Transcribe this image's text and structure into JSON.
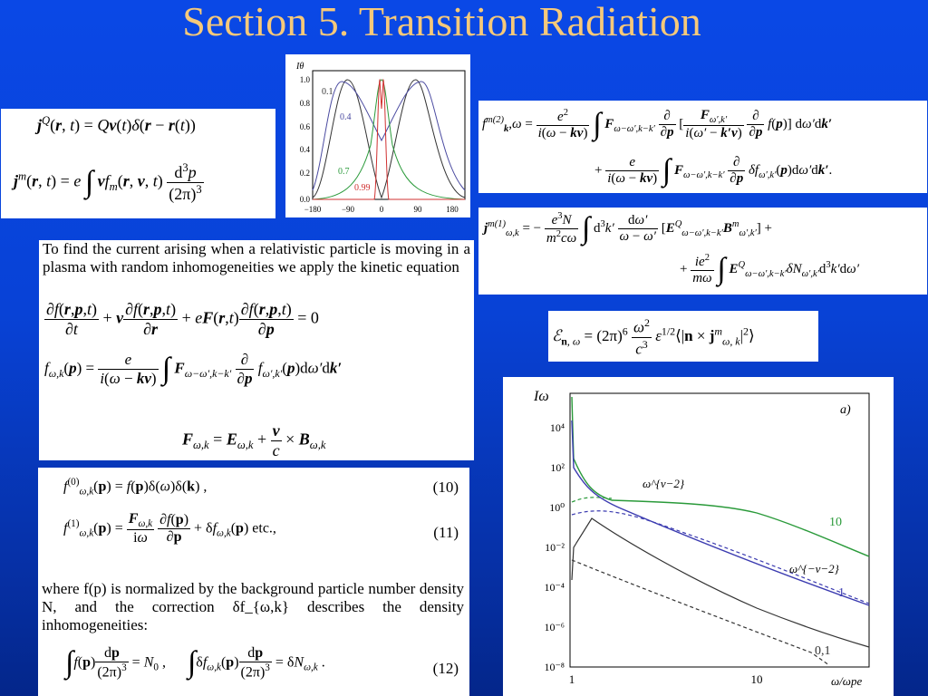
{
  "slide": {
    "title": "Section 5. Transition Radiation",
    "colors": {
      "title": "#f6c97a",
      "background": "#0842d6"
    }
  },
  "current_density": {
    "jQ": "jQ(r, t) = Qv(t)δ(r − r(t))",
    "jm": "jm(r, t) = e ∫ v fm(r, v, t) d³p/(2π)³"
  },
  "angular_plot": {
    "y_label": "Iθ",
    "y_ticks": [
      "1.0",
      "0.8",
      "0.6",
      "0.4",
      "0.2",
      "0.0"
    ],
    "x_ticks": [
      "−180",
      "−90",
      "0",
      "90",
      "180"
    ],
    "curve_labels": [
      "0.1",
      "0.4",
      "0.7",
      "0.99"
    ]
  },
  "fm2_equation": {
    "line1": "f^{m(2)}_{k,ω} = e²/(i(ω − kv)) ∫ F_{ω−ω′,k−k′} ∂/∂p [ F_{ω′,k′}/(i(ω′ − k′v)) ∂/∂p f(p) ] dω′dk′",
    "line2": "+ e/(i(ω − kv)) ∫ F_{ω−ω′,k−k′} ∂/∂p δf_{ω′,k′}(p) dω′dk′."
  },
  "jm1_equation": {
    "line1": "j^{m(1)}_{ω,k} = −e³N/(m²cω) ∫ d³k′ dω′/(ω − ω′) [ E^Q_{ω−ω′,k−k′} B^m_{ω′,k′} ] +",
    "line2": "+ ie²/(mω) ∫ E^Q_{ω−ω′,k−k′} δN_{ω′,k′} d³k′dω′"
  },
  "energy_equation": "E_{n,ω} = (2π)⁶ ω²/c³ ε^{1/2} ⟨|n × j^m_{ω,k}|²⟩",
  "kinetic_block": {
    "intro": "To find the current arising when a relativistic particle is moving in a plasma with random inhomogeneities we apply the kinetic equation",
    "kinetic_eq": "∂f(r,p,t)/∂t + v ∂f(r,p,t)/∂r + eF(r,t) ∂f(r,p,t)/∂p = 0",
    "f_solution": "f_{ω,k}(p) = e/(i(ω − kv)) ∫ F_{ω−ω′,k−k′} ∂/∂p f_{ω′,k′}(p) dω′dk′",
    "force": "F_{ω,k} = E_{ω,k} + v/c × B_{ω,k}"
  },
  "expansion_block": {
    "eq10": "f^{(0)}_{ω,k}(p) = f(p)δ(ω)δ(k),",
    "eq10_num": "(10)",
    "eq11": "f^{(1)}_{ω,k}(p) = F_{ω,k}/(iω) ∂f(p)/∂p + δf_{ω,k}(p) etc.,",
    "eq11_num": "(11)",
    "text": "where f(p) is normalized by the background particle number density N, and the correction δf_{ω,k} describes the density inhomogeneities:",
    "eq12": "∫ f(p) dp/(2π)³ = N₀,   ∫ δf_{ω,k}(p) dp/(2π)³ = δN_{ω,k}.",
    "eq12_num": "(12)"
  },
  "spectrum_plot": {
    "panel_label": "a)",
    "y_label": "Iω",
    "x_label": "ω/ωpe",
    "y_ticks": [
      "10⁴",
      "10²",
      "10⁰",
      "10⁻²",
      "10⁻⁴",
      "10⁻⁶",
      "10⁻⁸"
    ],
    "x_ticks": [
      "1",
      "10"
    ],
    "annotations": [
      "ω^{ν−2}",
      "ω^{−ν−2}"
    ],
    "curve_labels": [
      "10",
      "1",
      "0,1"
    ]
  }
}
